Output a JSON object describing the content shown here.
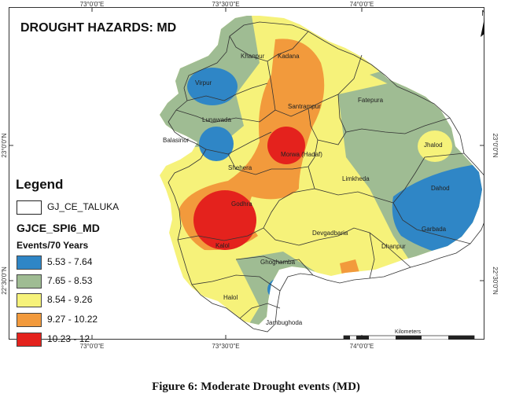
{
  "map": {
    "title": "DROUGHT HAZARDS: MD",
    "north_label": "N",
    "graticule": {
      "top_ticks": [
        "73°0'0\"E",
        "73°30'0\"E",
        "74°0'0\"E"
      ],
      "bottom_ticks": [
        "73°0'0\"E",
        "73°30'0\"E",
        "74°0'0\"E"
      ],
      "left_ticks": [
        "23°0'0\"N",
        "22°30'0\"N"
      ],
      "right_ticks": [
        "23°0'0\"N",
        "22°30'0\"N"
      ]
    },
    "talukas": [
      {
        "name": "Khanpur",
        "value_class": "7.65 - 8.53"
      },
      {
        "name": "Kadana",
        "value_class": "9.27 - 10.22"
      },
      {
        "name": "Virpur",
        "value_class": "5.53 - 7.64"
      },
      {
        "name": "Santrampur",
        "value_class": "9.27 - 10.22"
      },
      {
        "name": "Fatepura",
        "value_class": "8.54 - 9.26"
      },
      {
        "name": "Lunawada",
        "value_class": "8.54 - 9.26"
      },
      {
        "name": "Balasinor",
        "value_class": "7.65 - 8.53"
      },
      {
        "name": "Jhalod",
        "value_class": "8.54 - 9.26"
      },
      {
        "name": "Morwa (Hadaf)",
        "value_class": "10.23 - 12"
      },
      {
        "name": "Shehera",
        "value_class": "8.54 - 9.26"
      },
      {
        "name": "Limkheda",
        "value_class": "8.54 - 9.26"
      },
      {
        "name": "Dahod",
        "value_class": "5.53 - 7.64"
      },
      {
        "name": "Godhra",
        "value_class": "10.23 - 12"
      },
      {
        "name": "Garbada",
        "value_class": "5.53 - 7.64"
      },
      {
        "name": "Devgadbaria",
        "value_class": "8.54 - 9.26"
      },
      {
        "name": "Kalol",
        "value_class": "9.27 - 10.22"
      },
      {
        "name": "Dhanpur",
        "value_class": "8.54 - 9.26"
      },
      {
        "name": "Ghoghamba",
        "value_class": "7.65 - 8.53"
      },
      {
        "name": "Halol",
        "value_class": "8.54 - 9.26"
      },
      {
        "name": "Jambughoda",
        "value_class": "7.65 - 8.53"
      }
    ],
    "scalebar": {
      "title": "Kilometers",
      "labels": [
        "0",
        "5",
        "10",
        "20",
        "30",
        "40",
        "50"
      ]
    }
  },
  "legend": {
    "title": "Legend",
    "layer_name": "GJ_CE_TALUKA",
    "field_name": "GJCE_SPI6_MD",
    "units": "Events/70 Years",
    "classes": [
      {
        "label": "5.53 - 7.64",
        "color": "#2f86c6"
      },
      {
        "label": "7.65 - 8.53",
        "color": "#9fbc93"
      },
      {
        "label": "8.54 - 9.26",
        "color": "#f6f27a"
      },
      {
        "label": "9.27 - 10.22",
        "color": "#f29a3c"
      },
      {
        "label": "10.23 - 12",
        "color": "#e4221d"
      }
    ]
  },
  "caption": "Figure 6: Moderate Drought events (MD)"
}
